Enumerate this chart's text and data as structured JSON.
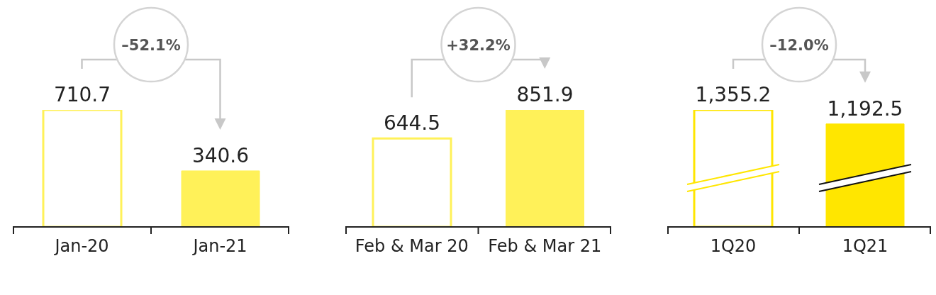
{
  "chart_data": [
    {
      "type": "bar",
      "categories": [
        "Jan-20",
        "Jan-21"
      ],
      "values": [
        710.7,
        340.6
      ],
      "colors": [
        "#fff159",
        "#fff159"
      ],
      "value_labels": [
        "710.7",
        "340.6"
      ],
      "annotations": [
        "–52.1%"
      ]
    },
    {
      "type": "bar",
      "categories": [
        "Feb & Mar 20",
        "Feb & Mar 21"
      ],
      "values": [
        644.5,
        851.9
      ],
      "colors": [
        "#fff159",
        "#fff159"
      ],
      "value_labels": [
        "644.5",
        "851.9"
      ],
      "annotations": [
        "+32.2%"
      ]
    },
    {
      "type": "bar",
      "categories": [
        "1Q20",
        "1Q21"
      ],
      "values": [
        1355.2,
        1192.5
      ],
      "colors": [
        "#ffe600",
        "#ffe600"
      ],
      "value_labels": [
        "1,355.2",
        "1,192.5"
      ],
      "annotations": [
        "–12.0%"
      ]
    }
  ]
}
